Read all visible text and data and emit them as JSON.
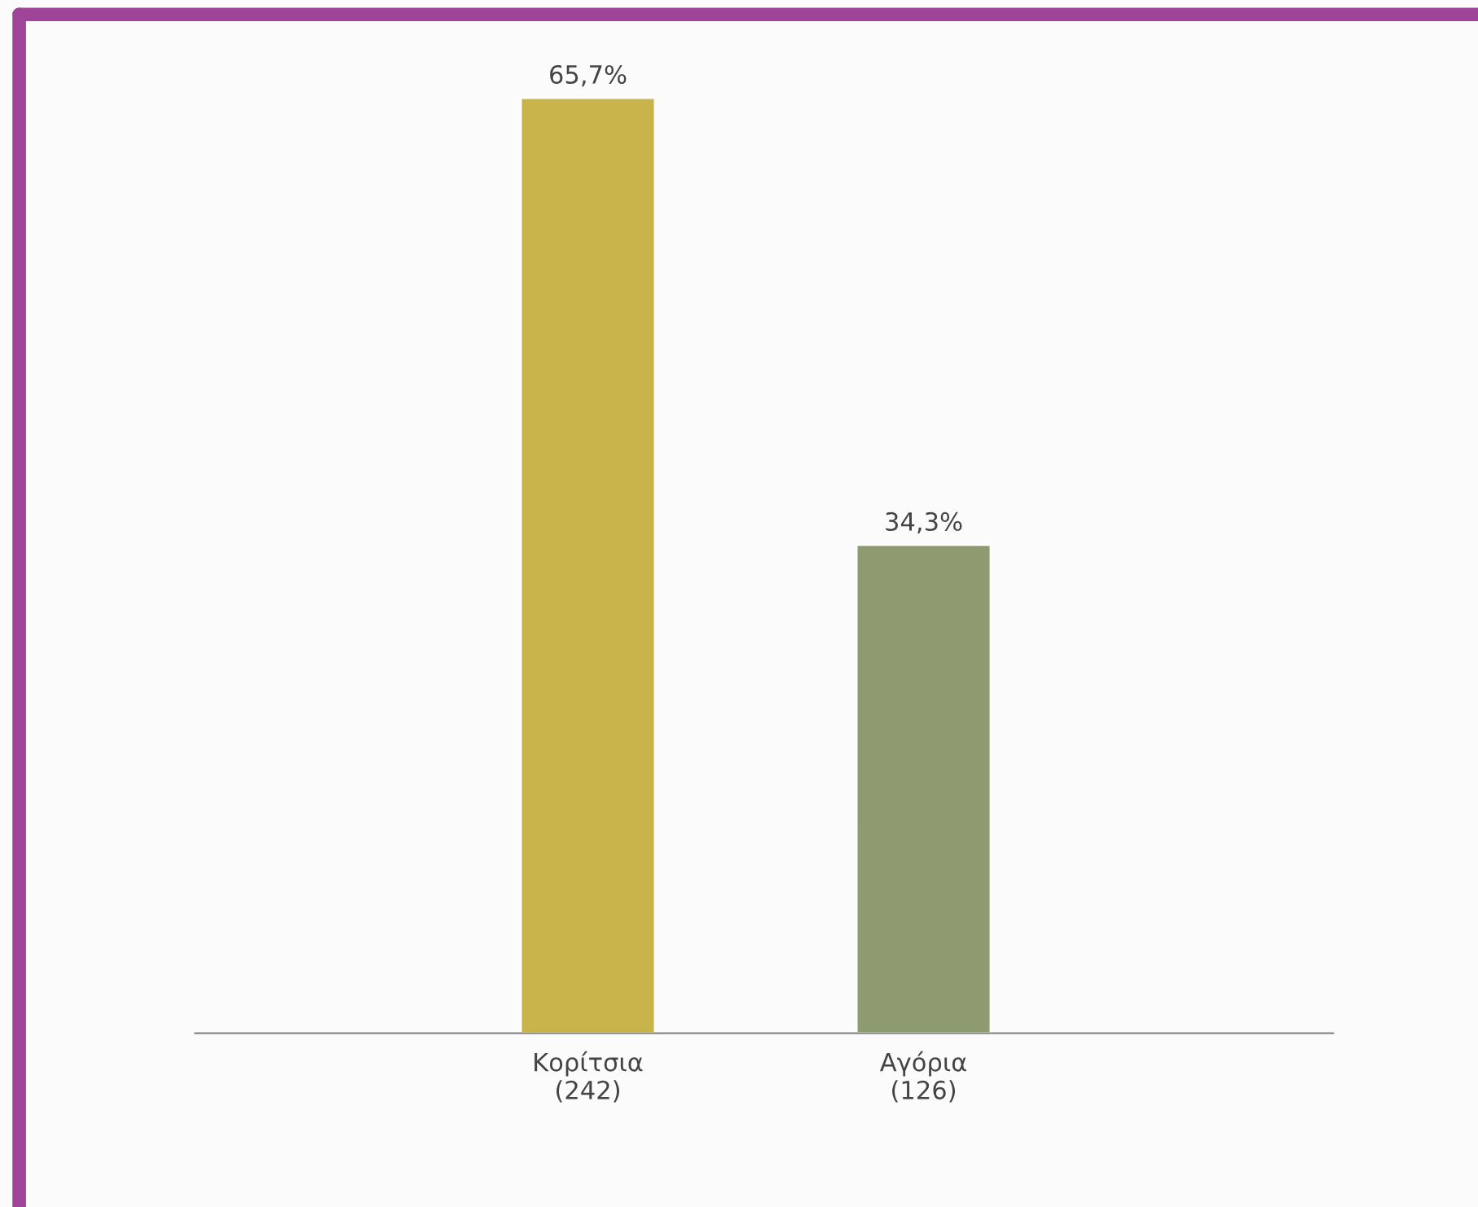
{
  "chart_data": {
    "type": "bar",
    "categories": [
      "Κορίτσια\n(242)",
      "Αγόρια\n(126)"
    ],
    "values": [
      65.7,
      34.3
    ],
    "value_labels": [
      "65,7%",
      "34,3%"
    ],
    "colors": [
      "#c8b44a",
      "#8e9a70"
    ],
    "grid": false,
    "legend": false
  }
}
